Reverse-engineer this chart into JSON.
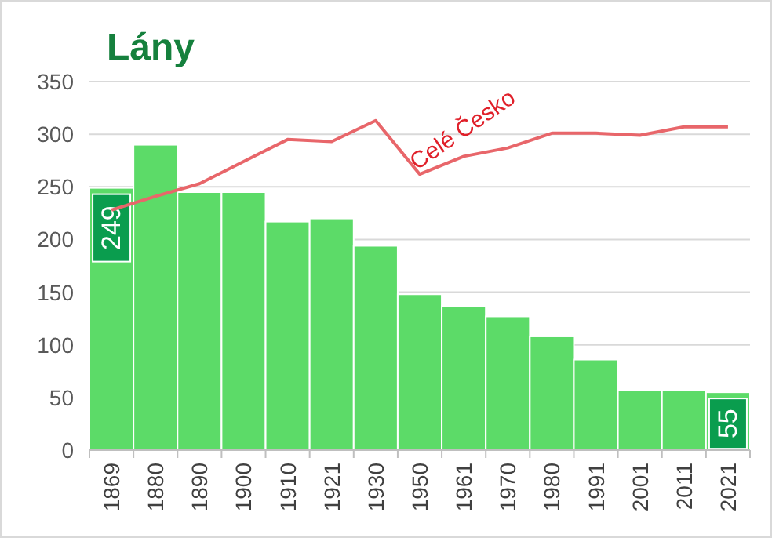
{
  "chart_data": {
    "type": "bar",
    "title": "Lány",
    "categories": [
      "1869",
      "1880",
      "1890",
      "1900",
      "1910",
      "1921",
      "1930",
      "1950",
      "1961",
      "1970",
      "1980",
      "1991",
      "2001",
      "2011",
      "2021"
    ],
    "series": [
      {
        "color": "#5cdb68",
        "values": [
          249,
          290,
          245,
          245,
          217,
          220,
          194,
          148,
          137,
          127,
          108,
          86,
          57,
          57,
          55
        ],
        "value_labels": [
          "249",
          null,
          null,
          null,
          null,
          null,
          null,
          null,
          null,
          null,
          null,
          null,
          null,
          null,
          "55"
        ]
      },
      {
        "type": "line",
        "name": "Celé Česko",
        "color": "#e8666a",
        "values": [
          228,
          241,
          253,
          274,
          295,
          293,
          313,
          262,
          279,
          287,
          301,
          301,
          299,
          307,
          307
        ]
      }
    ],
    "ylim": [
      0,
      350
    ],
    "yticks": [
      0,
      50,
      100,
      150,
      200,
      250,
      300,
      350
    ],
    "grid": "y",
    "marker": "none",
    "line_style": "solid"
  }
}
